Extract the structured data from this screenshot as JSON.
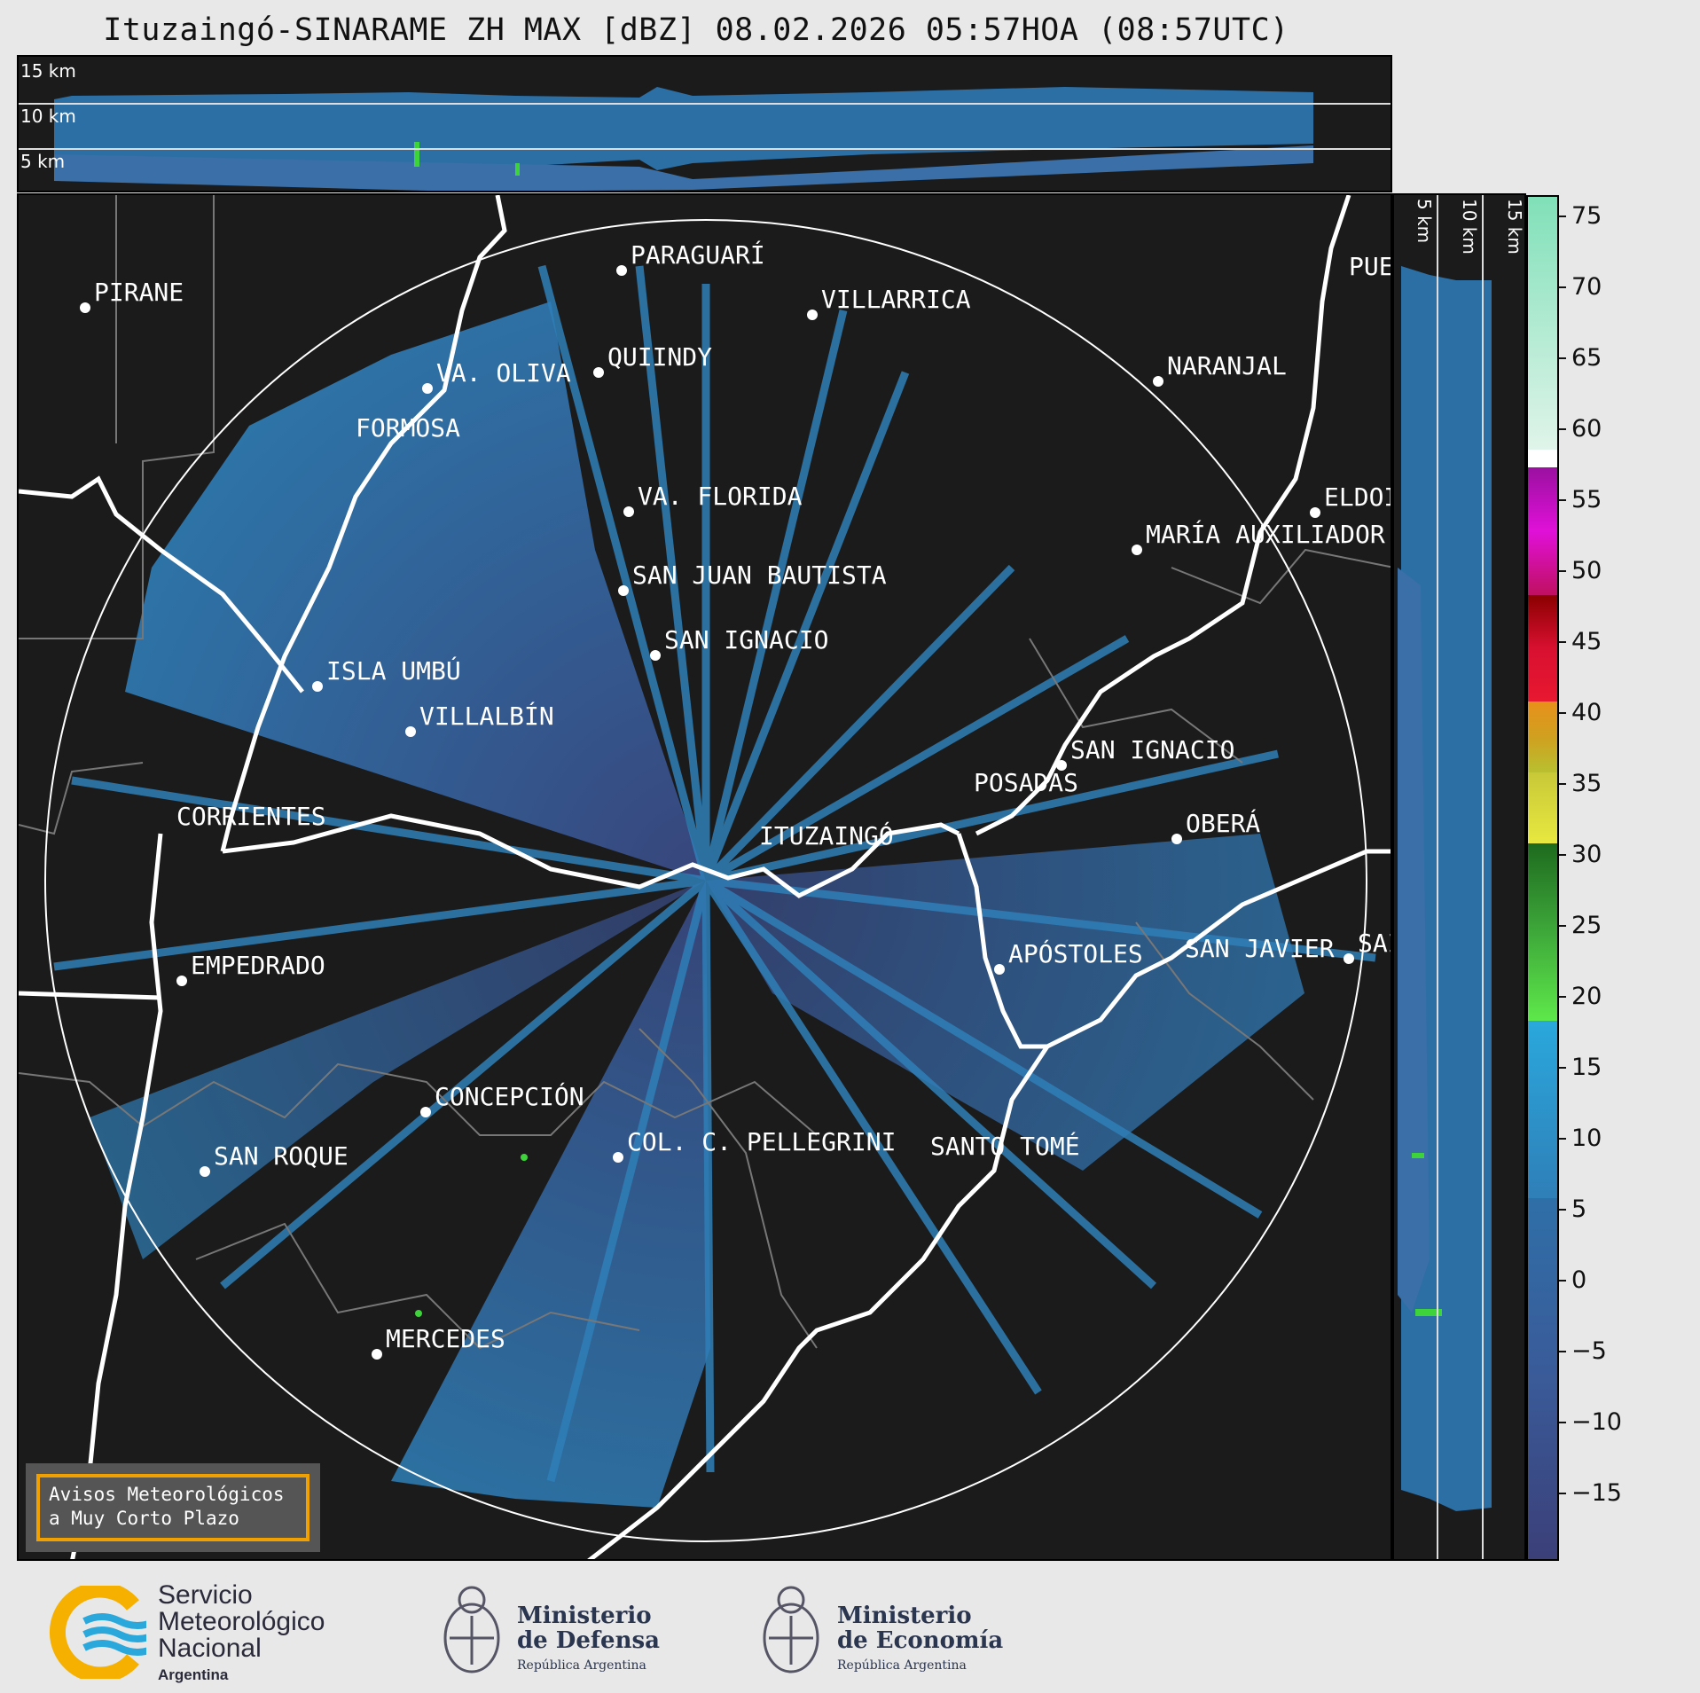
{
  "title": "Ituzaingó-SINARAME ZH MAX [dBZ] 08.02.2026 05:57HOA (08:57UTC)",
  "top_panel": {
    "altitude_labels": [
      "15 km",
      "10 km",
      "5 km"
    ]
  },
  "right_panel": {
    "altitude_labels": [
      "5 km",
      "10 km",
      "15 km"
    ]
  },
  "map": {
    "cities": [
      {
        "name": "PIRANE"
      },
      {
        "name": "PARAGUARÍ"
      },
      {
        "name": "VILLARRICA"
      },
      {
        "name": "QUIINDY"
      },
      {
        "name": "VA. OLIVA"
      },
      {
        "name": "FORMOSA"
      },
      {
        "name": "NARANJAL"
      },
      {
        "name": "PUEI"
      },
      {
        "name": "VA. FLORIDA"
      },
      {
        "name": "ELDOI"
      },
      {
        "name": "MARÍA AUXILIADOR"
      },
      {
        "name": "SAN JUAN BAUTISTA"
      },
      {
        "name": "SAN IGNACIO"
      },
      {
        "name": "ISLA UMBÚ"
      },
      {
        "name": "VILLALBÍN"
      },
      {
        "name": "SAN IGNACIO"
      },
      {
        "name": "POSADAS"
      },
      {
        "name": "CORRIENTES"
      },
      {
        "name": "ITUZAINGÓ"
      },
      {
        "name": "OBERÁ"
      },
      {
        "name": "EMPEDRADO"
      },
      {
        "name": "APÓSTOLES"
      },
      {
        "name": "SAN JAVIER"
      },
      {
        "name": "SAI"
      },
      {
        "name": "CONCEPCIÓN"
      },
      {
        "name": "COL. C. PELLEGRINI"
      },
      {
        "name": "SANTO TOMÉ"
      },
      {
        "name": "SAN ROQUE"
      },
      {
        "name": "MERCEDES"
      }
    ],
    "warning_box": {
      "line1": "Avisos Meteorológicos",
      "line2": "a Muy Corto Plazo"
    }
  },
  "colorbar": {
    "unit": "dBZ",
    "ticks": [
      "75",
      "70",
      "65",
      "60",
      "55",
      "50",
      "45",
      "40",
      "35",
      "30",
      "25",
      "20",
      "15",
      "10",
      "5",
      "0",
      "−5",
      "−10",
      "−15"
    ],
    "range": [
      -20,
      77
    ],
    "colors": {
      "low": "#3b3f78",
      "weak": "#2f7fb8",
      "light": "#2aa8dc",
      "green": "#3ed33a",
      "yellow": "#e8e840",
      "orange": "#e8901a",
      "red": "#d81030",
      "magenta": "#e010d8",
      "white": "#ffffff",
      "mint": "#80e0b8"
    }
  },
  "logos": {
    "smn": {
      "line1": "Servicio",
      "line2": "Meteorológico",
      "line3": "Nacional",
      "line4": "Argentina"
    },
    "defensa": {
      "line1": "Ministerio",
      "line2": "de Defensa",
      "line3": "República Argentina"
    },
    "economia": {
      "line1": "Ministerio",
      "line2": "de Economía",
      "line3": "República Argentina"
    }
  }
}
